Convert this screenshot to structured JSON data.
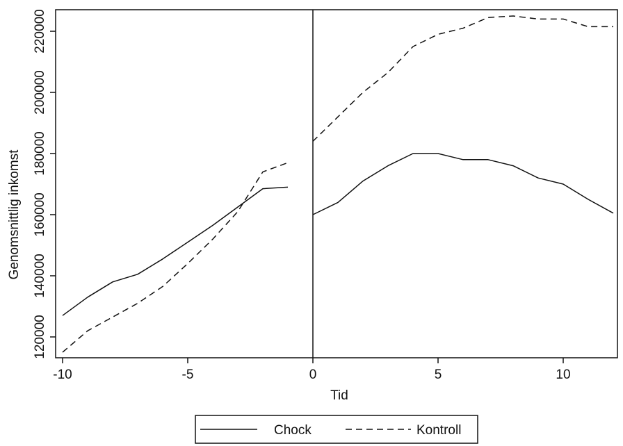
{
  "chart_data": {
    "type": "line",
    "title": "",
    "xlabel": "Tid",
    "ylabel": "Genomsnittlig inkomst",
    "xlim": [
      -10,
      12
    ],
    "ylim": [
      120000,
      222000
    ],
    "xticks": [
      -10,
      -5,
      0,
      5,
      10
    ],
    "xtick_labels": [
      "-10",
      "-5",
      "0",
      "5",
      "10"
    ],
    "yticks": [
      120000,
      140000,
      160000,
      180000,
      200000,
      220000
    ],
    "ytick_labels": [
      "120000",
      "140000",
      "160000",
      "180000",
      "200000",
      "220000"
    ],
    "grid": false,
    "vertical_line_at": 0,
    "legend_position": "bottom",
    "series": [
      {
        "name": "Chock",
        "style": "solid",
        "color": "#111111",
        "segments": [
          {
            "x": [
              -10,
              -9,
              -8,
              -7,
              -6,
              -5,
              -4,
              -3,
              -2,
              -1
            ],
            "y": [
              127000,
              133000,
              138000,
              140500,
              145500,
              151000,
              156500,
              162500,
              168500,
              169000
            ]
          },
          {
            "x": [
              0,
              1,
              2,
              3,
              4,
              5,
              6,
              7,
              8,
              9,
              10,
              11,
              12
            ],
            "y": [
              160000,
              164000,
              171000,
              176000,
              180000,
              180000,
              178000,
              178000,
              176000,
              172000,
              170000,
              165000,
              160500
            ]
          }
        ]
      },
      {
        "name": "Kontroll",
        "style": "dashed",
        "color": "#111111",
        "segments": [
          {
            "x": [
              -10,
              -9,
              -8,
              -7,
              -6,
              -5,
              -4,
              -3,
              -2,
              -1
            ],
            "y": [
              115000,
              122000,
              126500,
              131000,
              136500,
              144000,
              152000,
              161000,
              174000,
              177000
            ]
          },
          {
            "x": [
              0,
              1,
              2,
              3,
              4,
              5,
              6,
              7,
              8,
              9,
              10,
              11,
              12
            ],
            "y": [
              184000,
              192000,
              200000,
              206500,
              215000,
              219000,
              221000,
              224500,
              225000,
              224000,
              224000,
              221500,
              221500
            ]
          }
        ]
      }
    ]
  }
}
